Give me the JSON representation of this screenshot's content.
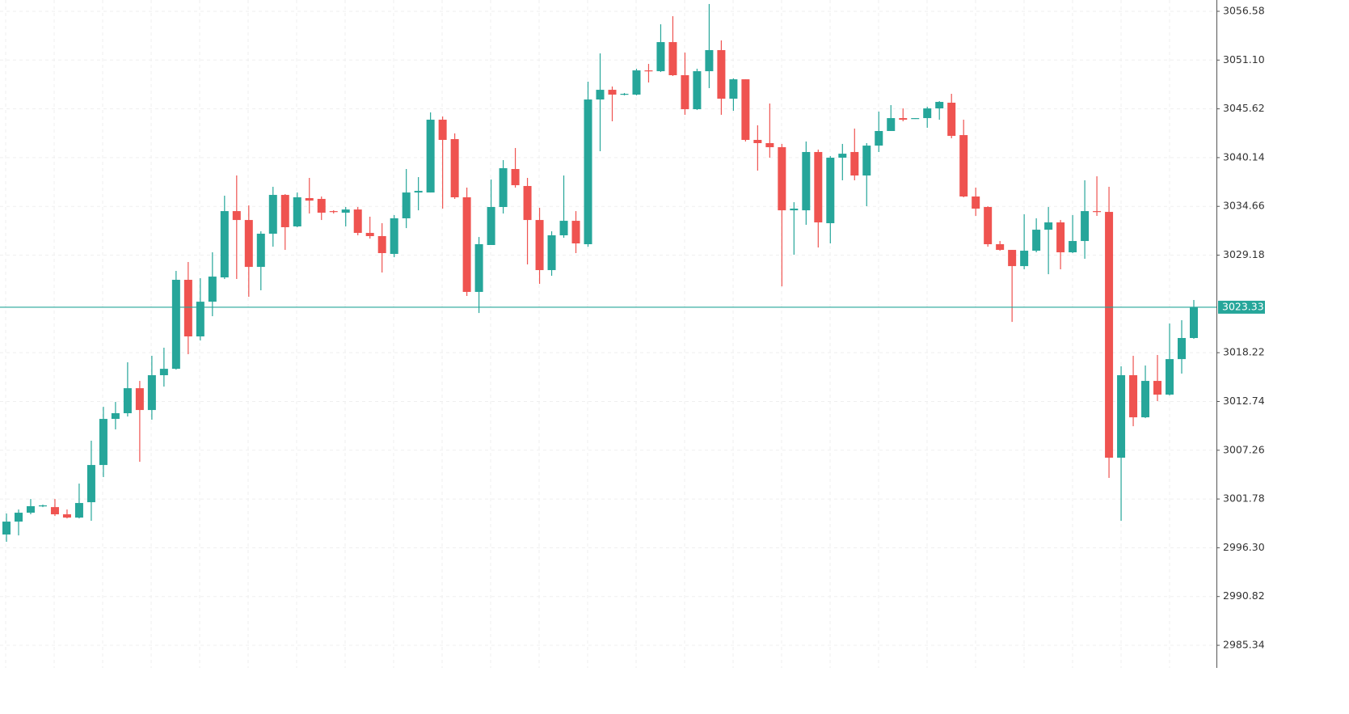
{
  "chart_data": {
    "type": "candlestick",
    "open": [
      2997.79,
      2999.24,
      3000.24,
      3000.97,
      3000.87,
      3000.06,
      2999.69,
      3001.42,
      3005.6,
      3010.78,
      3011.42,
      3014.23,
      3011.78,
      3015.69,
      3016.41,
      3026.41,
      3020.05,
      3023.95,
      3026.68,
      3034.13,
      3033.13,
      3027.86,
      3031.59,
      3035.95,
      3032.41,
      3035.59,
      3035.5,
      3034.13,
      3033.95,
      3034.31,
      3031.68,
      3031.32,
      3029.32,
      3033.32,
      3036.22,
      3036.22,
      3044.4,
      3042.22,
      3035.68,
      3025.05,
      3030.32,
      3034.59,
      3038.86,
      3036.95,
      3033.13,
      3027.5,
      3031.41,
      3033.04,
      3030.41,
      3046.67,
      3047.76,
      3047.22,
      3047.22,
      3049.94,
      3049.85,
      3053.12,
      3049.4,
      3045.58,
      3049.85,
      3052.22,
      3046.76,
      3048.94,
      3042.13,
      3041.77,
      3041.31,
      3034.22,
      3034.22,
      3040.77,
      3032.77,
      3040.13,
      3040.77,
      3038.13,
      3041.49,
      3043.13,
      3044.58,
      3044.49,
      3044.58,
      3045.67,
      3046.31,
      3042.67,
      3035.77,
      3034.59,
      3030.41,
      3029.77,
      3027.95,
      3029.68,
      3032.04,
      3032.86,
      3029.5,
      3030.77,
      3034.13,
      3034.04,
      3006.42,
      3015.69,
      3010.96,
      3015.05,
      3013.51,
      3017.5,
      3019.87
    ],
    "high": [
      3000.15,
      3000.6,
      3001.78,
      3001.15,
      3001.78,
      3000.6,
      3003.51,
      3008.33,
      3012.14,
      3012.69,
      3017.14,
      3015.05,
      3017.87,
      3018.78,
      3027.41,
      3028.41,
      3026.59,
      3029.5,
      3035.86,
      3038.13,
      3034.77,
      3031.86,
      3036.86,
      3036.04,
      3036.22,
      3037.86,
      3035.77,
      3034.22,
      3034.59,
      3034.59,
      3033.5,
      3032.77,
      3033.68,
      3038.86,
      3037.95,
      3045.22,
      3044.76,
      3042.86,
      3036.77,
      3031.22,
      3037.68,
      3039.86,
      3041.22,
      3037.86,
      3034.5,
      3031.86,
      3038.13,
      3034.13,
      3048.67,
      3051.85,
      3048.13,
      3047.4,
      3050.13,
      3050.67,
      3055.12,
      3056.03,
      3051.94,
      3050.13,
      3057.4,
      3053.31,
      3049.04,
      3048.94,
      3043.77,
      3046.22,
      3041.68,
      3035.13,
      3041.95,
      3041.04,
      3040.31,
      3041.68,
      3043.4,
      3041.77,
      3045.31,
      3046.04,
      3045.67,
      3044.58,
      3045.85,
      3046.49,
      3047.31,
      3044.4,
      3036.77,
      3034.68,
      3030.77,
      3029.77,
      3033.77,
      3033.32,
      3034.59,
      3033.13,
      3033.68,
      3037.59,
      3038.04,
      3036.86,
      3016.69,
      3017.87,
      3016.78,
      3017.96,
      3021.5,
      3021.87,
      3024.14
    ],
    "low": [
      2996.97,
      2997.69,
      3000.06,
      3000.87,
      2999.87,
      2999.6,
      2999.6,
      2999.33,
      3004.24,
      3009.6,
      3011.05,
      3005.96,
      3010.69,
      3014.41,
      3016.32,
      3018.05,
      3019.59,
      3022.32,
      3026.5,
      3026.5,
      3024.5,
      3025.23,
      3030.13,
      3029.77,
      3032.32,
      3033.86,
      3033.13,
      3033.86,
      3032.41,
      3031.41,
      3031.04,
      3027.23,
      3028.95,
      3032.22,
      3034.22,
      3036.22,
      3034.41,
      3035.5,
      3024.59,
      3022.68,
      3030.32,
      3033.86,
      3036.77,
      3028.14,
      3025.95,
      3026.86,
      3031.13,
      3029.41,
      3030.13,
      3040.86,
      3044.22,
      3047.13,
      3047.13,
      3048.58,
      3049.76,
      3049.31,
      3044.95,
      3045.49,
      3047.95,
      3044.95,
      3045.4,
      3041.95,
      3038.68,
      3040.13,
      3025.68,
      3029.23,
      3032.59,
      3030.04,
      3030.5,
      3037.59,
      3037.59,
      3034.68,
      3040.77,
      3043.13,
      3044.22,
      3044.49,
      3043.49,
      3044.4,
      3042.31,
      3035.68,
      3033.59,
      3030.13,
      3029.68,
      3021.68,
      3027.59,
      3029.5,
      3027.04,
      3027.59,
      3029.41,
      3028.77,
      3033.59,
      3004.15,
      2999.33,
      3009.96,
      3010.87,
      3012.78,
      3013.41,
      3015.87,
      3019.78
    ],
    "close": [
      2999.24,
      3000.24,
      3000.97,
      3001.06,
      3000.06,
      2999.69,
      3001.33,
      3005.6,
      3010.78,
      3011.42,
      3014.23,
      3011.78,
      3015.69,
      3016.41,
      3026.41,
      3020.05,
      3023.95,
      3026.77,
      3034.13,
      3033.13,
      3027.86,
      3031.59,
      3035.95,
      3032.32,
      3035.68,
      3035.31,
      3033.95,
      3034.04,
      3034.31,
      3031.68,
      3031.32,
      3029.41,
      3033.32,
      3036.22,
      3036.4,
      3044.4,
      3042.13,
      3035.68,
      3025.05,
      3030.41,
      3034.59,
      3038.95,
      3037.04,
      3033.13,
      3027.5,
      3031.41,
      3033.04,
      3030.5,
      3046.67,
      3047.76,
      3047.22,
      3047.31,
      3049.94,
      3049.85,
      3053.12,
      3049.4,
      3045.58,
      3049.85,
      3052.22,
      3046.76,
      3048.94,
      3042.13,
      3041.77,
      3041.31,
      3034.22,
      3034.41,
      3040.77,
      3032.86,
      3040.13,
      3040.58,
      3038.13,
      3041.49,
      3043.13,
      3044.58,
      3044.4,
      3044.58,
      3045.67,
      3046.4,
      3042.58,
      3035.77,
      3034.41,
      3030.41,
      3029.77,
      3027.95,
      3029.68,
      3032.04,
      3032.86,
      3029.5,
      3030.77,
      3034.13,
      3034.04,
      3006.42,
      3015.69,
      3010.96,
      3015.05,
      3013.51,
      3017.5,
      3019.87,
      3023.33
    ],
    "colors": {
      "up": "#26a69a",
      "down": "#ef5350"
    },
    "last_price": 3023.33,
    "ylim": [
      2982.8,
      3057.85
    ],
    "yticks": [
      3056.58,
      {
        "value": 3051.1,
        "label": "3051.10"
      },
      3045.62,
      3040.14,
      3034.66,
      3029.18,
      3018.22,
      3012.74,
      3007.26,
      3001.78,
      {
        "value": 2996.3,
        "label": "2996.30"
      },
      2990.82,
      2985.34
    ],
    "grid": true
  }
}
